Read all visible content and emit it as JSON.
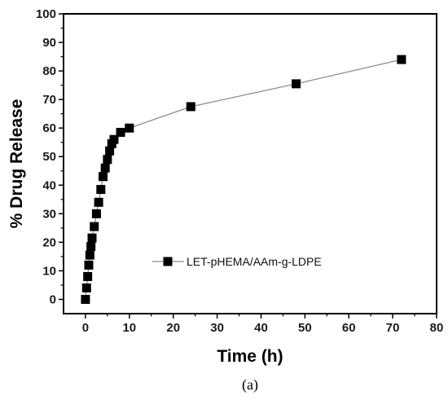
{
  "chart_data": {
    "type": "line",
    "title": "",
    "xlabel": "Time (h)",
    "ylabel": "% Drug Release",
    "xlim": [
      -5,
      80
    ],
    "ylim": [
      -5,
      100
    ],
    "x_ticks": [
      0,
      10,
      20,
      30,
      40,
      50,
      60,
      70,
      80
    ],
    "y_ticks": [
      0,
      10,
      20,
      30,
      40,
      50,
      60,
      70,
      80,
      90,
      100
    ],
    "grid": false,
    "legend_position": "lower-right",
    "panel_label": "(a)",
    "series": [
      {
        "name": "LET-pHEMA/AAm-g-LDPE",
        "marker": "square",
        "marker_color": "#000000",
        "line_color": "#8c8c8c",
        "points": [
          [
            0,
            0
          ],
          [
            0.25,
            4
          ],
          [
            0.5,
            8
          ],
          [
            0.75,
            12
          ],
          [
            1,
            15.5
          ],
          [
            1.25,
            18.5
          ],
          [
            1.5,
            21.5
          ],
          [
            2,
            25.5
          ],
          [
            2.5,
            30
          ],
          [
            3,
            34
          ],
          [
            3.5,
            38.5
          ],
          [
            4,
            43
          ],
          [
            4.5,
            46
          ],
          [
            5,
            49
          ],
          [
            5.5,
            52
          ],
          [
            6,
            54.5
          ],
          [
            6.5,
            56
          ],
          [
            8,
            58.5
          ],
          [
            10,
            60
          ],
          [
            24,
            67.5
          ],
          [
            48,
            75.5
          ],
          [
            72,
            84
          ]
        ]
      }
    ]
  }
}
